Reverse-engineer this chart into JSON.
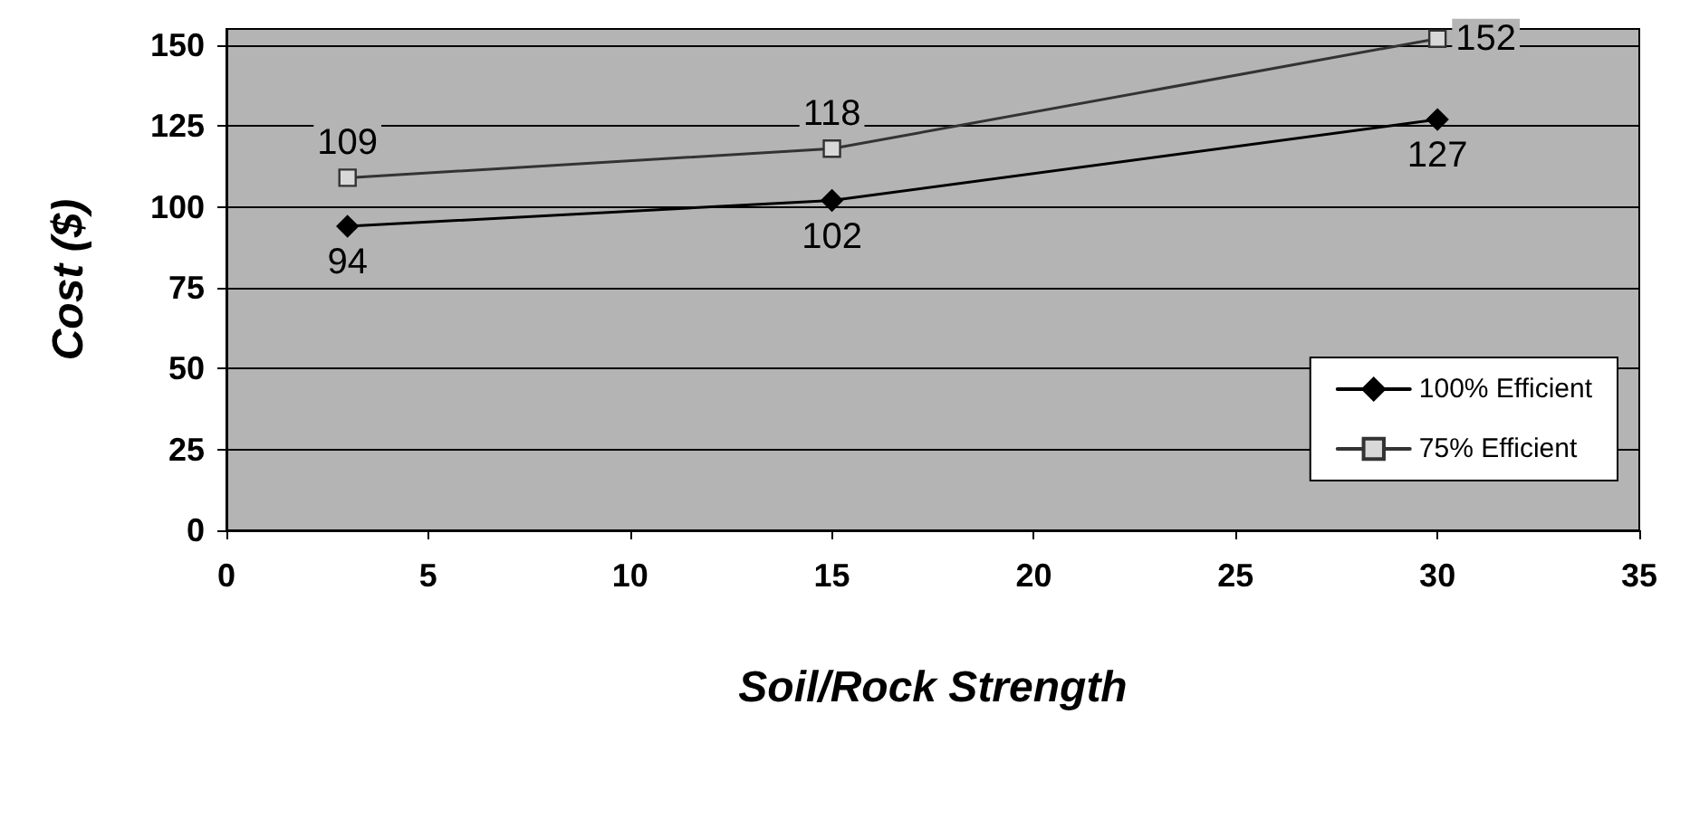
{
  "chart_data": {
    "type": "line",
    "xlabel": "Soil/Rock Strength",
    "ylabel": "Cost ($)",
    "xlim": [
      0,
      35
    ],
    "xticks": [
      0,
      5,
      10,
      15,
      20,
      25,
      30,
      35
    ],
    "ylim": [
      0,
      155
    ],
    "yticks": [
      0,
      25,
      50,
      75,
      100,
      125,
      150
    ],
    "grid": "y",
    "legend": "right",
    "data_labels": true,
    "series": [
      {
        "name": "100% Efficient",
        "color": "#000000",
        "marker": "diamond",
        "x": [
          3,
          15,
          30
        ],
        "values": [
          94,
          102,
          127
        ]
      },
      {
        "name": "75% Efficient",
        "color": "#333333",
        "marker": "square",
        "x": [
          3,
          15,
          30
        ],
        "values": [
          109,
          118,
          152
        ]
      }
    ]
  }
}
